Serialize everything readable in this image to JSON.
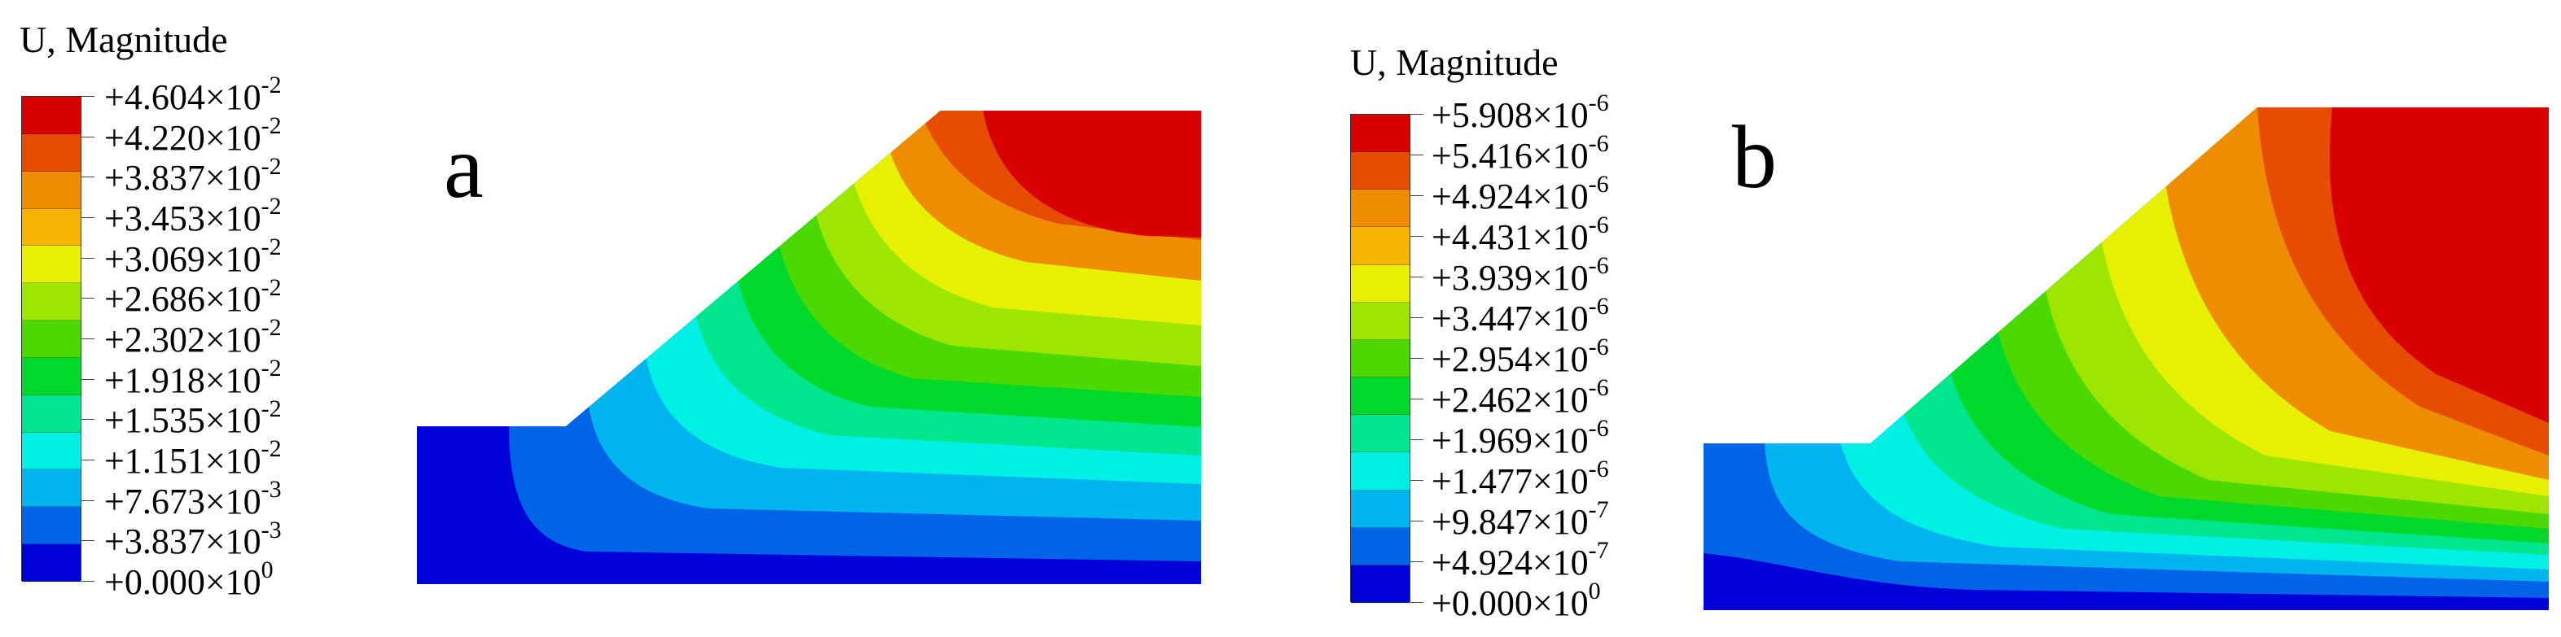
{
  "panels": [
    {
      "id": "a",
      "letter": "a",
      "legend_title": "U, Magnitude",
      "legend": [
        {
          "mantissa": "+4.604",
          "exp": "-2"
        },
        {
          "mantissa": "+4.220",
          "exp": "-2"
        },
        {
          "mantissa": "+3.837",
          "exp": "-2"
        },
        {
          "mantissa": "+3.453",
          "exp": "-2"
        },
        {
          "mantissa": "+3.069",
          "exp": "-2"
        },
        {
          "mantissa": "+2.686",
          "exp": "-2"
        },
        {
          "mantissa": "+2.302",
          "exp": "-2"
        },
        {
          "mantissa": "+1.918",
          "exp": "-2"
        },
        {
          "mantissa": "+1.535",
          "exp": "-2"
        },
        {
          "mantissa": "+1.151",
          "exp": "-2"
        },
        {
          "mantissa": "+7.673",
          "exp": "-3"
        },
        {
          "mantissa": "+3.837",
          "exp": "-3"
        },
        {
          "mantissa": "+0.000",
          "exp": "0"
        }
      ]
    },
    {
      "id": "b",
      "letter": "b",
      "legend_title": "U, Magnitude",
      "legend": [
        {
          "mantissa": "+5.908",
          "exp": "-6"
        },
        {
          "mantissa": "+5.416",
          "exp": "-6"
        },
        {
          "mantissa": "+4.924",
          "exp": "-6"
        },
        {
          "mantissa": "+4.431",
          "exp": "-6"
        },
        {
          "mantissa": "+3.939",
          "exp": "-6"
        },
        {
          "mantissa": "+3.447",
          "exp": "-6"
        },
        {
          "mantissa": "+2.954",
          "exp": "-6"
        },
        {
          "mantissa": "+2.462",
          "exp": "-6"
        },
        {
          "mantissa": "+1.969",
          "exp": "-6"
        },
        {
          "mantissa": "+1.477",
          "exp": "-6"
        },
        {
          "mantissa": "+9.847",
          "exp": "-7"
        },
        {
          "mantissa": "+4.924",
          "exp": "-7"
        },
        {
          "mantissa": "+0.000",
          "exp": "0"
        }
      ]
    }
  ],
  "colormap": [
    "#d90000",
    "#e64d00",
    "#f08c00",
    "#f5b400",
    "#e6f000",
    "#9ee600",
    "#4cd900",
    "#00d92a",
    "#00e68c",
    "#00f0e6",
    "#00b4f0",
    "#0064e6",
    "#0000d9"
  ],
  "separator": "×10"
}
